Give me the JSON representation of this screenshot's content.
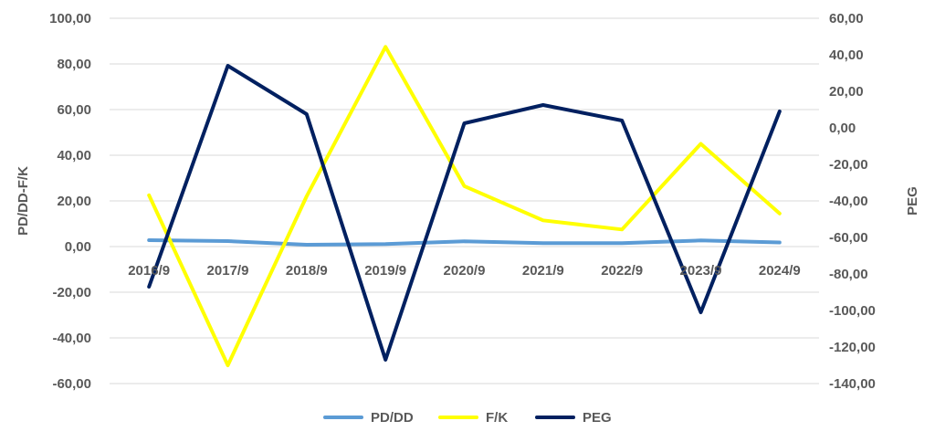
{
  "chart_data": {
    "type": "line",
    "categories": [
      "2016/9",
      "2017/9",
      "2018/9",
      "2019/9",
      "2020/9",
      "2021/9",
      "2022/9",
      "2023/9",
      "2024/9"
    ],
    "y_left": {
      "label": "PD/DD-F/K",
      "ylim": [
        -60,
        100
      ],
      "ticks": [
        "-60,00",
        "-40,00",
        "-20,00",
        "0,00",
        "20,00",
        "40,00",
        "60,00",
        "80,00",
        "100,00"
      ]
    },
    "y_right": {
      "label": "PEG",
      "ylim": [
        -140,
        60
      ],
      "ticks": [
        "-140,00",
        "-120,00",
        "-100,00",
        "-80,00",
        "-60,00",
        "-40,00",
        "-20,00",
        "0,00",
        "20,00",
        "40,00",
        "60,00"
      ]
    },
    "series": [
      {
        "name": "PD/DD",
        "axis": "left",
        "color": "#5b9bd5",
        "values": [
          2.8,
          2.4,
          0.8,
          1.1,
          2.3,
          1.5,
          1.5,
          2.7,
          1.8
        ]
      },
      {
        "name": "F/K",
        "axis": "left",
        "color": "#ffff00",
        "values": [
          22.5,
          -52,
          22,
          87.5,
          26.5,
          11.5,
          7.5,
          45,
          14.5
        ]
      },
      {
        "name": "PEG",
        "axis": "right",
        "color": "#002060",
        "values": [
          -87,
          34,
          7.5,
          -127,
          2.5,
          12.5,
          4,
          -101,
          9
        ]
      }
    ],
    "grid": true,
    "legend_position": "bottom"
  }
}
